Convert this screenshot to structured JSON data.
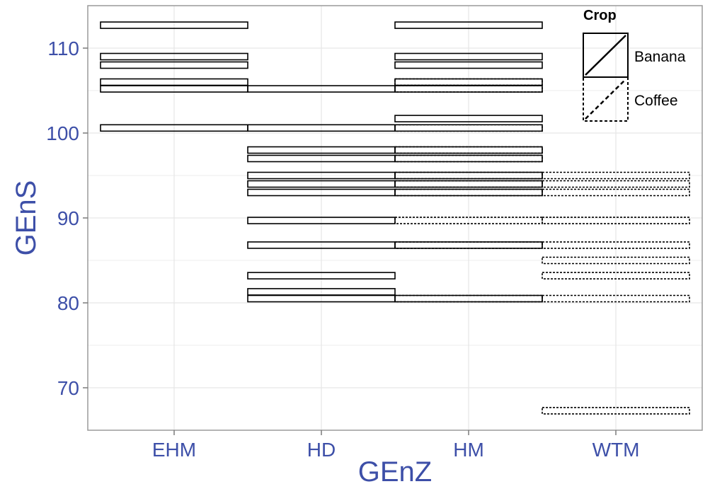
{
  "colors": {
    "axis_text": "#3d4fa8",
    "panel_border": "#9a9a9a",
    "grid": "#e6e6e6",
    "tile_stroke": "#000000",
    "background": "#ffffff"
  },
  "chart_data": {
    "type": "tile",
    "xlabel": "GEnZ",
    "ylabel": "GEnS",
    "categories": [
      "EHM",
      "HD",
      "HM",
      "WTM"
    ],
    "yticks": [
      70,
      80,
      90,
      100,
      110
    ],
    "ylim": [
      65,
      115
    ],
    "grid": true,
    "legend": {
      "title": "Crop",
      "position": "top-right",
      "entries": [
        {
          "label": "Banana",
          "linetype": "solid"
        },
        {
          "label": "Coffee",
          "linetype": "dashed"
        }
      ]
    },
    "series": [
      {
        "name": "Banana",
        "linetype": "solid",
        "tiles": [
          {
            "x": "EHM",
            "y": 112.7
          },
          {
            "x": "EHM",
            "y": 109.0
          },
          {
            "x": "EHM",
            "y": 108.0
          },
          {
            "x": "EHM",
            "y": 106.0
          },
          {
            "x": "EHM",
            "y": 105.2
          },
          {
            "x": "EHM",
            "y": 100.6
          },
          {
            "x": "HD",
            "y": 105.2
          },
          {
            "x": "HD",
            "y": 100.6
          },
          {
            "x": "HD",
            "y": 98.0
          },
          {
            "x": "HD",
            "y": 97.0
          },
          {
            "x": "HD",
            "y": 95.0
          },
          {
            "x": "HD",
            "y": 94.0
          },
          {
            "x": "HD",
            "y": 93.0
          },
          {
            "x": "HD",
            "y": 89.7
          },
          {
            "x": "HD",
            "y": 86.8
          },
          {
            "x": "HD",
            "y": 83.2
          },
          {
            "x": "HD",
            "y": 81.3
          },
          {
            "x": "HD",
            "y": 80.5
          },
          {
            "x": "HM",
            "y": 112.7
          },
          {
            "x": "HM",
            "y": 109.0
          },
          {
            "x": "HM",
            "y": 108.0
          },
          {
            "x": "HM",
            "y": 106.0
          },
          {
            "x": "HM",
            "y": 105.2
          },
          {
            "x": "HM",
            "y": 101.7
          },
          {
            "x": "HM",
            "y": 100.6
          },
          {
            "x": "HM",
            "y": 98.0
          },
          {
            "x": "HM",
            "y": 97.0
          },
          {
            "x": "HM",
            "y": 95.0
          },
          {
            "x": "HM",
            "y": 94.0
          },
          {
            "x": "HM",
            "y": 93.0
          },
          {
            "x": "HM",
            "y": 86.8
          },
          {
            "x": "HM",
            "y": 80.5
          }
        ]
      },
      {
        "name": "Coffee",
        "linetype": "dashed",
        "tiles": [
          {
            "x": "HM",
            "y": 106.0
          },
          {
            "x": "HM",
            "y": 105.2
          },
          {
            "x": "HM",
            "y": 100.6
          },
          {
            "x": "HM",
            "y": 98.0
          },
          {
            "x": "HM",
            "y": 97.0
          },
          {
            "x": "HM",
            "y": 95.0
          },
          {
            "x": "HM",
            "y": 94.0
          },
          {
            "x": "HM",
            "y": 93.0
          },
          {
            "x": "HM",
            "y": 89.7
          },
          {
            "x": "HM",
            "y": 86.8
          },
          {
            "x": "HM",
            "y": 80.5
          },
          {
            "x": "WTM",
            "y": 95.0
          },
          {
            "x": "WTM",
            "y": 94.0
          },
          {
            "x": "WTM",
            "y": 93.0
          },
          {
            "x": "WTM",
            "y": 89.7
          },
          {
            "x": "WTM",
            "y": 86.8
          },
          {
            "x": "WTM",
            "y": 85.0
          },
          {
            "x": "WTM",
            "y": 83.2
          },
          {
            "x": "WTM",
            "y": 80.5
          },
          {
            "x": "WTM",
            "y": 67.3
          }
        ]
      }
    ]
  }
}
